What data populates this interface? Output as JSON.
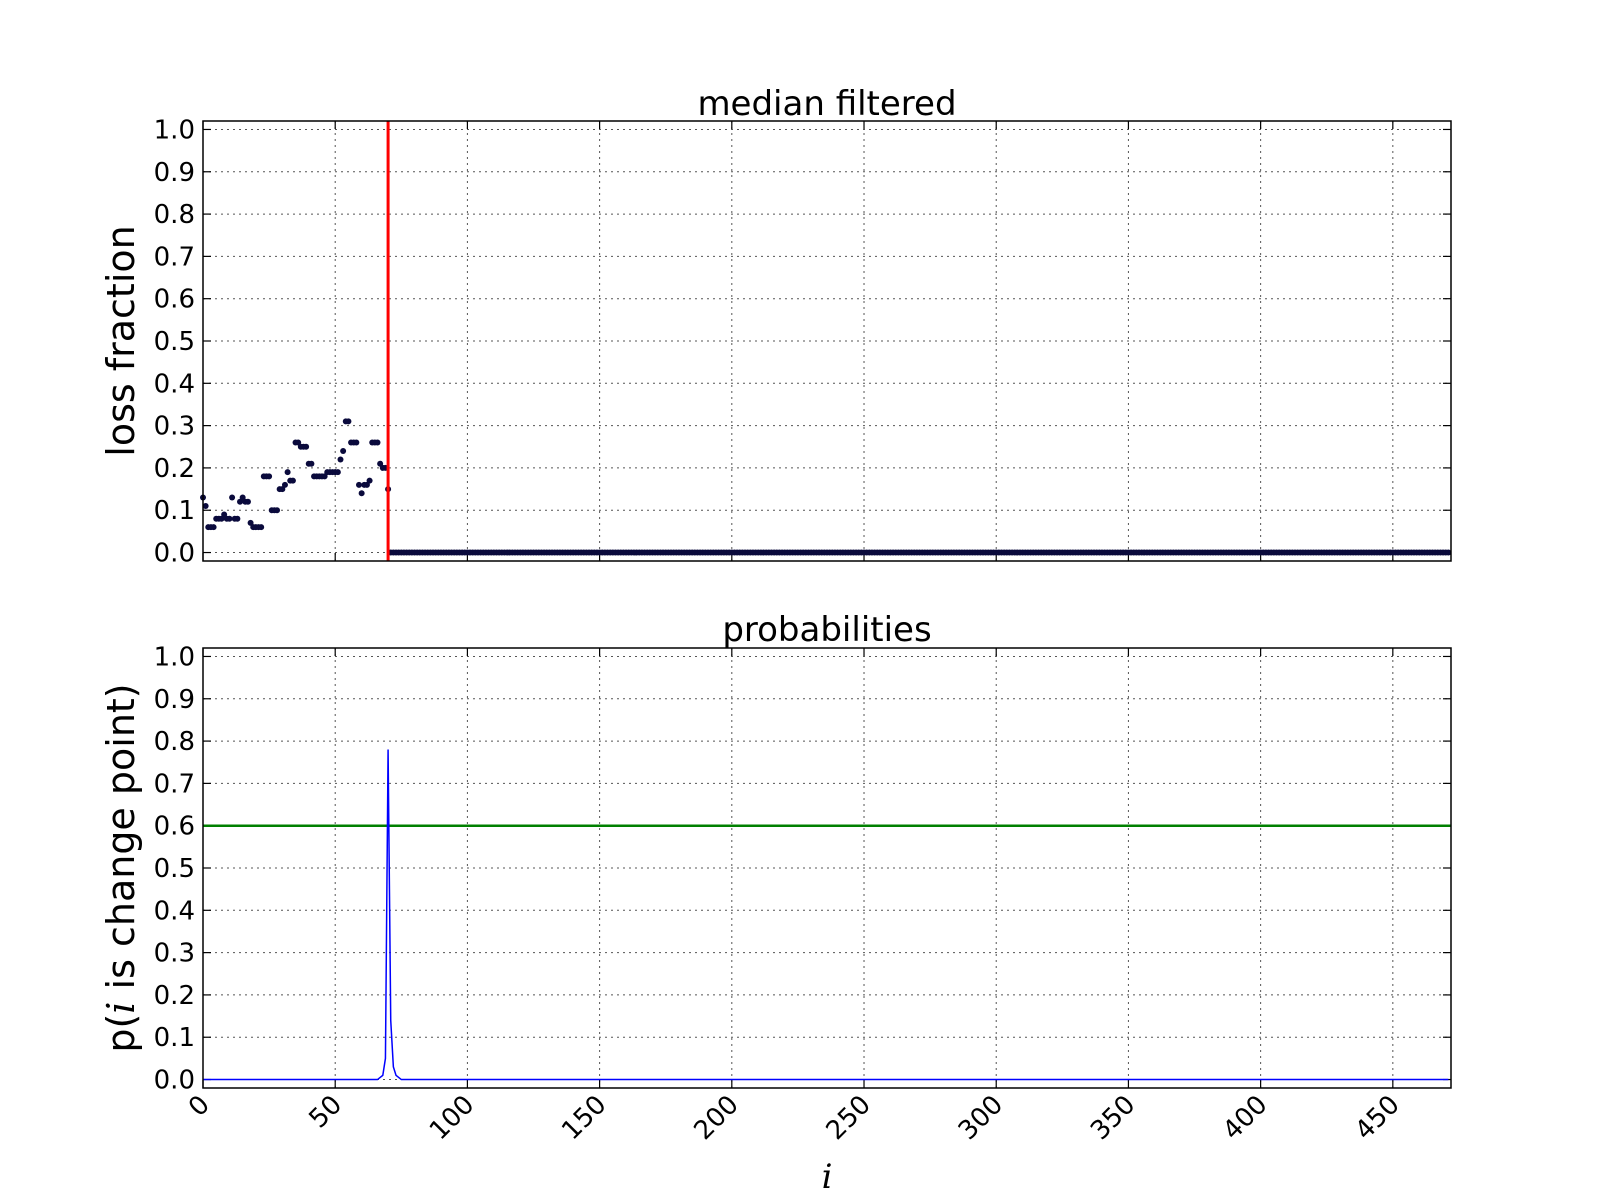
{
  "chart_data": [
    {
      "type": "scatter",
      "title": "median filtered",
      "xlabel": "",
      "ylabel": "loss fraction",
      "xlim": [
        0,
        472
      ],
      "ylim": [
        -0.02,
        1.02
      ],
      "xticks": [
        0,
        50,
        100,
        150,
        200,
        250,
        300,
        350,
        400,
        450
      ],
      "xtick_labels_visible": false,
      "yticks": [
        "0.0",
        "0.1",
        "0.2",
        "0.3",
        "0.4",
        "0.5",
        "0.6",
        "0.7",
        "0.8",
        "0.9",
        "1.0"
      ],
      "grid": true,
      "marker_color": "#0a0a3c",
      "vline": {
        "x": 70,
        "color": "#ff0000"
      },
      "points": [
        [
          0,
          0.13
        ],
        [
          1,
          0.11
        ],
        [
          2,
          0.06
        ],
        [
          3,
          0.06
        ],
        [
          4,
          0.06
        ],
        [
          5,
          0.08
        ],
        [
          6,
          0.08
        ],
        [
          7,
          0.08
        ],
        [
          8,
          0.09
        ],
        [
          9,
          0.08
        ],
        [
          10,
          0.08
        ],
        [
          11,
          0.13
        ],
        [
          12,
          0.08
        ],
        [
          13,
          0.08
        ],
        [
          14,
          0.12
        ],
        [
          15,
          0.13
        ],
        [
          16,
          0.12
        ],
        [
          17,
          0.12
        ],
        [
          18,
          0.07
        ],
        [
          19,
          0.06
        ],
        [
          20,
          0.06
        ],
        [
          21,
          0.06
        ],
        [
          22,
          0.06
        ],
        [
          23,
          0.18
        ],
        [
          24,
          0.18
        ],
        [
          25,
          0.18
        ],
        [
          26,
          0.1
        ],
        [
          27,
          0.1
        ],
        [
          28,
          0.1
        ],
        [
          29,
          0.15
        ],
        [
          30,
          0.15
        ],
        [
          31,
          0.16
        ],
        [
          32,
          0.19
        ],
        [
          33,
          0.17
        ],
        [
          34,
          0.17
        ],
        [
          35,
          0.26
        ],
        [
          36,
          0.26
        ],
        [
          37,
          0.25
        ],
        [
          38,
          0.25
        ],
        [
          39,
          0.25
        ],
        [
          40,
          0.21
        ],
        [
          41,
          0.21
        ],
        [
          42,
          0.18
        ],
        [
          43,
          0.18
        ],
        [
          44,
          0.18
        ],
        [
          45,
          0.18
        ],
        [
          46,
          0.18
        ],
        [
          47,
          0.19
        ],
        [
          48,
          0.19
        ],
        [
          49,
          0.19
        ],
        [
          50,
          0.19
        ],
        [
          51,
          0.19
        ],
        [
          52,
          0.22
        ],
        [
          53,
          0.24
        ],
        [
          54,
          0.31
        ],
        [
          55,
          0.31
        ],
        [
          56,
          0.26
        ],
        [
          57,
          0.26
        ],
        [
          58,
          0.26
        ],
        [
          59,
          0.16
        ],
        [
          60,
          0.14
        ],
        [
          61,
          0.16
        ],
        [
          62,
          0.16
        ],
        [
          63,
          0.17
        ],
        [
          64,
          0.26
        ],
        [
          65,
          0.26
        ],
        [
          66,
          0.26
        ],
        [
          67,
          0.21
        ],
        [
          68,
          0.2
        ],
        [
          69,
          0.2
        ],
        [
          70,
          0.15
        ]
      ],
      "constant_tail": {
        "from": 71,
        "to": 471,
        "step": 1,
        "value": 0.0
      }
    },
    {
      "type": "line",
      "title": "probabilities",
      "xlabel": "i",
      "ylabel_prefix": "p(",
      "ylabel_var": "i",
      "ylabel_suffix": " is change point)",
      "xlim": [
        0,
        472
      ],
      "ylim": [
        -0.02,
        1.02
      ],
      "xticks": [
        "0",
        "50",
        "100",
        "150",
        "200",
        "250",
        "300",
        "350",
        "400",
        "450"
      ],
      "yticks": [
        "0.0",
        "0.1",
        "0.2",
        "0.3",
        "0.4",
        "0.5",
        "0.6",
        "0.7",
        "0.8",
        "0.9",
        "1.0"
      ],
      "grid": true,
      "line_color": "#0000ff",
      "hline": {
        "y": 0.6,
        "color": "#008000"
      },
      "x": [
        0,
        66,
        68,
        69,
        70,
        71,
        72,
        73,
        75,
        471
      ],
      "y": [
        0.0,
        0.0,
        0.01,
        0.05,
        0.78,
        0.14,
        0.03,
        0.01,
        0.0,
        0.0
      ]
    }
  ]
}
